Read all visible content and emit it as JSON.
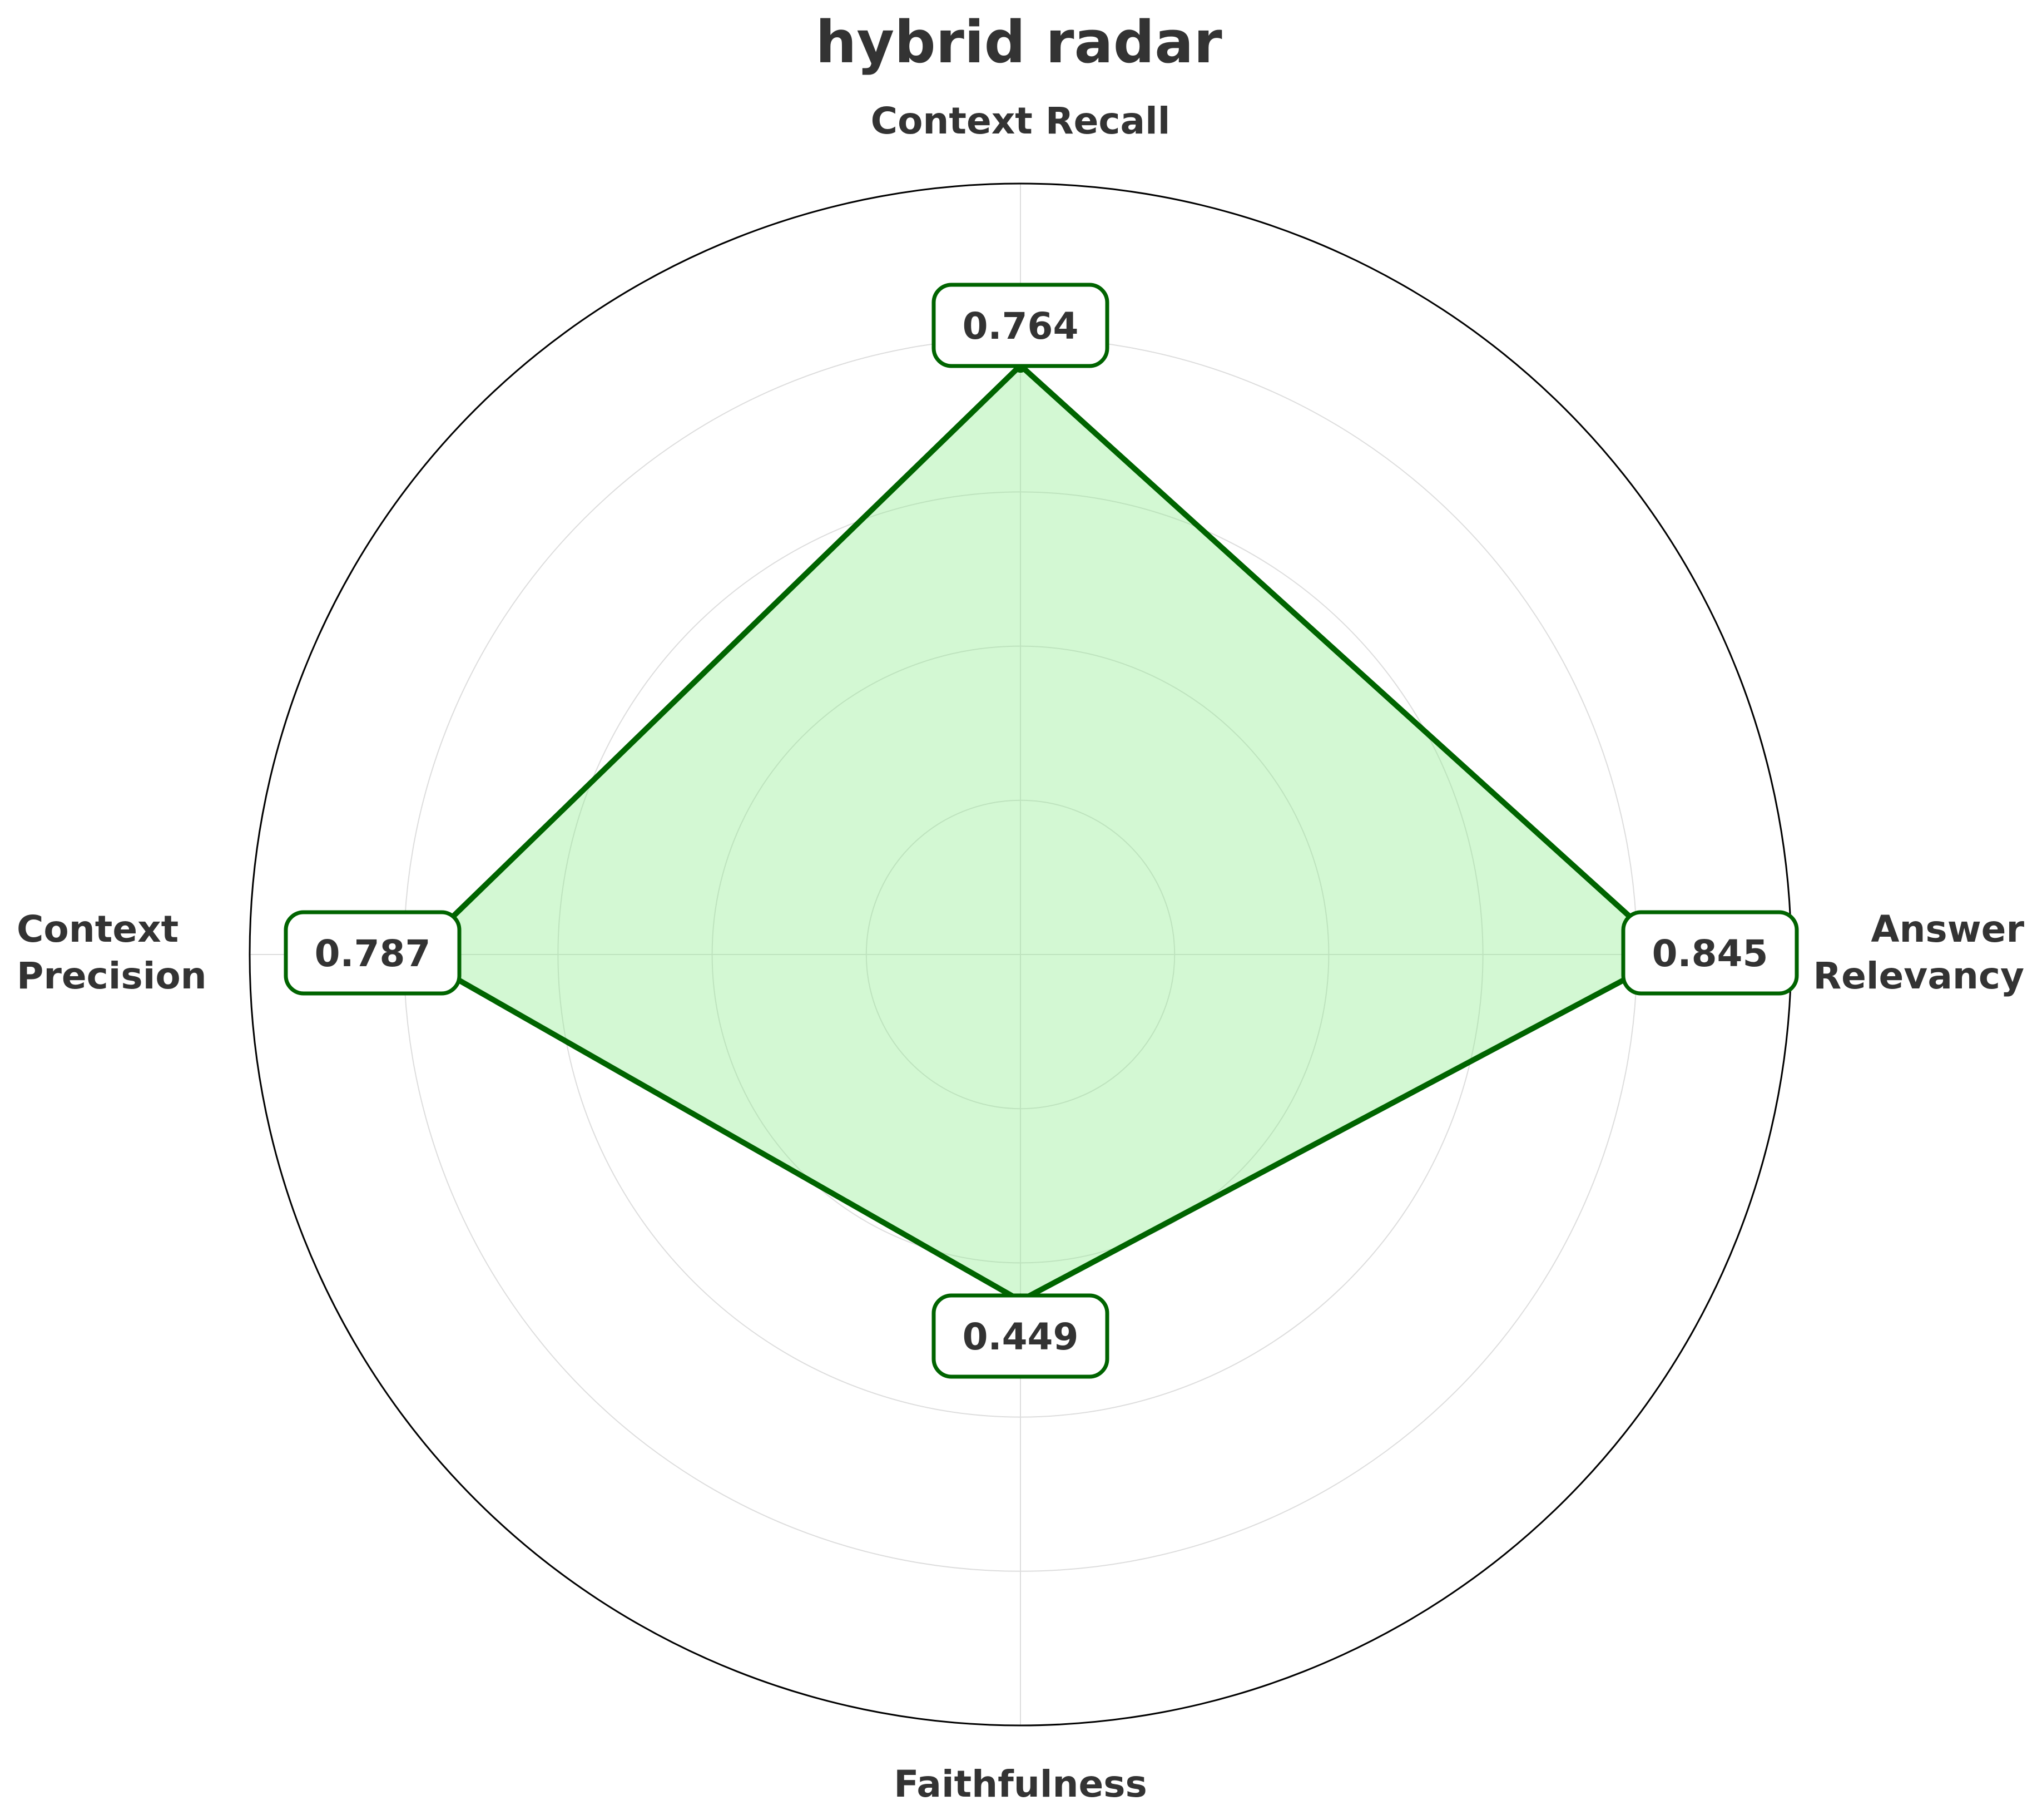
{
  "chart_data": {
    "type": "radar",
    "title": "hybrid radar",
    "axes": [
      "Context Recall",
      "Answer Relevancy",
      "Faithfulness",
      "Context Precision"
    ],
    "axis_label_lines": [
      [
        "Context Recall"
      ],
      [
        "Answer",
        "Relevancy"
      ],
      [
        "Faithfulness"
      ],
      [
        "Context",
        "Precision"
      ]
    ],
    "values": [
      0.764,
      0.845,
      0.449,
      0.787
    ],
    "value_labels": [
      "0.764",
      "0.845",
      "0.449",
      "0.787"
    ],
    "rlim": [
      0,
      1
    ],
    "rgrid": [
      0.2,
      0.4,
      0.6,
      0.8
    ],
    "grid": true,
    "legend": false,
    "colors": {
      "line": "#006400",
      "fill": "#90ee90",
      "grid": "#dddddd",
      "frame": "#000000",
      "text": "#333333"
    }
  }
}
